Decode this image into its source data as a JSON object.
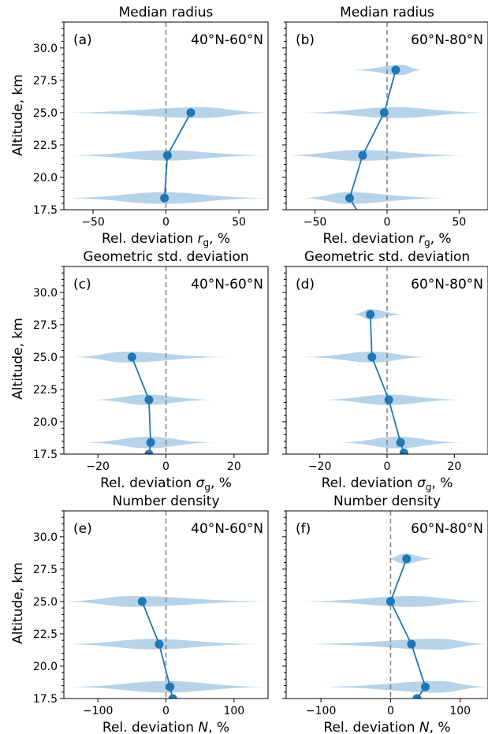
{
  "colors": {
    "line": "#1f77b4",
    "violin": "#b7d3ea",
    "zero_line": "#808080",
    "axes": "#000000"
  },
  "y_axis_label": "Altitude, km",
  "chart_data": [
    {
      "id": "a",
      "type": "scatter",
      "title": "Median radius",
      "panel_label": "(a)",
      "latitude_label": "40°N-60°N",
      "xlabel": "Rel. deviation r_g, %",
      "xlabel_parts": {
        "pre": "Rel. deviation ",
        "sym": "r",
        "sub": "g",
        "post": ", %"
      },
      "xlim": [
        -70,
        70
      ],
      "ylim": [
        17.5,
        32
      ],
      "xticks": [
        -50,
        0,
        50
      ],
      "yticks": [
        17.5,
        20.0,
        22.5,
        25.0,
        27.5,
        30.0
      ],
      "show_yticklabels": true,
      "points": [
        {
          "x": -1,
          "y": 18.4
        },
        {
          "x": 1,
          "y": 21.7
        },
        {
          "x": 17,
          "y": 25.0
        }
      ],
      "violins": [
        {
          "y": 18.4,
          "min": -68,
          "max": 68,
          "peak": -2,
          "half_height": 0.45
        },
        {
          "y": 21.7,
          "min": -66,
          "max": 68,
          "peak": 0,
          "half_height": 0.4
        },
        {
          "y": 25.0,
          "min": -70,
          "max": 70,
          "peak": 25,
          "half_height": 0.42
        }
      ]
    },
    {
      "id": "b",
      "type": "scatter",
      "title": "Median radius",
      "panel_label": "(b)",
      "latitude_label": "60°N-80°N",
      "xlabel": "Rel. deviation r_g, %",
      "xlabel_parts": {
        "pre": "Rel. deviation ",
        "sym": "r",
        "sub": "g",
        "post": ", %"
      },
      "xlim": [
        -70,
        70
      ],
      "ylim": [
        17.5,
        32
      ],
      "xticks": [
        -50,
        0,
        50
      ],
      "yticks": [
        17.5,
        20.0,
        22.5,
        25.0,
        27.5,
        30.0
      ],
      "show_yticklabels": false,
      "points": [
        {
          "x": -20,
          "y": 17.3
        },
        {
          "x": -26,
          "y": 18.4
        },
        {
          "x": -17,
          "y": 21.7
        },
        {
          "x": -2,
          "y": 25.0
        },
        {
          "x": 6,
          "y": 28.3
        }
      ],
      "violins": [
        {
          "y": 18.4,
          "min": -58,
          "max": 40,
          "peak": -28,
          "half_height": 0.45
        },
        {
          "y": 21.7,
          "min": -70,
          "max": 55,
          "peak": -20,
          "half_height": 0.42
        },
        {
          "y": 25.0,
          "min": -58,
          "max": 70,
          "peak": 5,
          "half_height": 0.42
        },
        {
          "y": 28.3,
          "min": -24,
          "max": 24,
          "peak": 10,
          "half_height": 0.4
        }
      ]
    },
    {
      "id": "c",
      "type": "scatter",
      "title": "Geometric std. deviation",
      "panel_label": "(c)",
      "latitude_label": "40°N-60°N",
      "xlabel": "Rel. deviation σ_g, %",
      "xlabel_parts": {
        "pre": "Rel. deviation ",
        "sym": "σ",
        "sub": "g",
        "post": ", %"
      },
      "xlim": [
        -30,
        30
      ],
      "ylim": [
        17.5,
        32
      ],
      "xticks": [
        -20,
        0,
        20
      ],
      "yticks": [
        17.5,
        20.0,
        22.5,
        25.0,
        27.5,
        30.0
      ],
      "show_yticklabels": true,
      "points": [
        {
          "x": -5,
          "y": 17.5
        },
        {
          "x": -4.5,
          "y": 18.4
        },
        {
          "x": -5,
          "y": 21.7
        },
        {
          "x": -10,
          "y": 25.0
        }
      ],
      "violins": [
        {
          "y": 18.4,
          "min": -24,
          "max": 14,
          "peak": -5,
          "half_height": 0.45
        },
        {
          "y": 21.7,
          "min": -21,
          "max": 14,
          "peak": -6,
          "half_height": 0.4
        },
        {
          "y": 25.0,
          "min": -27,
          "max": 18,
          "peak": -12,
          "half_height": 0.42
        }
      ]
    },
    {
      "id": "d",
      "type": "scatter",
      "title": "Geometric std. deviation",
      "panel_label": "(d)",
      "latitude_label": "60°N-80°N",
      "xlabel": "Rel. deviation σ_g, %",
      "xlabel_parts": {
        "pre": "Rel. deviation ",
        "sym": "σ",
        "sub": "g",
        "post": ", %"
      },
      "xlim": [
        -30,
        30
      ],
      "ylim": [
        17.5,
        32
      ],
      "xticks": [
        -20,
        0,
        20
      ],
      "yticks": [
        17.5,
        20.0,
        22.5,
        25.0,
        27.5,
        30.0
      ],
      "show_yticklabels": false,
      "points": [
        {
          "x": 5,
          "y": 17.6
        },
        {
          "x": 4,
          "y": 18.4
        },
        {
          "x": 0.5,
          "y": 21.7
        },
        {
          "x": -4.5,
          "y": 25.0
        },
        {
          "x": -5,
          "y": 28.3
        }
      ],
      "violins": [
        {
          "y": 18.4,
          "min": -14,
          "max": 22,
          "peak": 3,
          "half_height": 0.45
        },
        {
          "y": 21.7,
          "min": -19,
          "max": 22,
          "peak": 0,
          "half_height": 0.4
        },
        {
          "y": 25.0,
          "min": -25,
          "max": 12,
          "peak": -4,
          "half_height": 0.42
        },
        {
          "y": 28.3,
          "min": -10,
          "max": 5,
          "peak": -5,
          "half_height": 0.4
        }
      ]
    },
    {
      "id": "e",
      "type": "scatter",
      "title": "Number density",
      "panel_label": "(e)",
      "latitude_label": "40°N-60°N",
      "xlabel": "Rel. deviation N, %",
      "xlabel_parts": {
        "pre": "Rel. deviation ",
        "sym": "N",
        "sub": "",
        "post": ", %"
      },
      "xlim": [
        -150,
        150
      ],
      "ylim": [
        17.5,
        32
      ],
      "xticks": [
        -100,
        0,
        100
      ],
      "yticks": [
        17.5,
        20.0,
        22.5,
        25.0,
        27.5,
        30.0
      ],
      "show_yticklabels": true,
      "points": [
        {
          "x": 10,
          "y": 17.5
        },
        {
          "x": 6,
          "y": 18.4
        },
        {
          "x": -10,
          "y": 21.7
        },
        {
          "x": -35,
          "y": 25.0
        }
      ],
      "violins": [
        {
          "y": 18.4,
          "min": -140,
          "max": 148,
          "peak": 0,
          "half_height": 0.45
        },
        {
          "y": 21.7,
          "min": -148,
          "max": 138,
          "peak": -20,
          "half_height": 0.4
        },
        {
          "y": 25.0,
          "min": -150,
          "max": 150,
          "peak": -50,
          "half_height": 0.42
        }
      ]
    },
    {
      "id": "f",
      "type": "scatter",
      "title": "Number density",
      "panel_label": "(f)",
      "latitude_label": "60°N-80°N",
      "xlabel": "Rel. deviation N, %",
      "xlabel_parts": {
        "pre": "Rel. deviation ",
        "sym": "N",
        "sub": "",
        "post": ", %"
      },
      "xlim": [
        -150,
        140
      ],
      "ylim": [
        17.5,
        32
      ],
      "xticks": [
        -100,
        0,
        100
      ],
      "yticks": [
        17.5,
        20.0,
        22.5,
        25.0,
        27.5,
        30.0
      ],
      "show_yticklabels": false,
      "points": [
        {
          "x": 38,
          "y": 17.5
        },
        {
          "x": 50,
          "y": 18.4
        },
        {
          "x": 30,
          "y": 21.7
        },
        {
          "x": 0,
          "y": 25.0
        },
        {
          "x": 23,
          "y": 28.3
        }
      ],
      "violins": [
        {
          "y": 18.4,
          "min": -100,
          "max": 140,
          "peak": 70,
          "half_height": 0.45
        },
        {
          "y": 21.7,
          "min": -120,
          "max": 140,
          "peak": 70,
          "half_height": 0.42
        },
        {
          "y": 25.0,
          "min": -125,
          "max": 140,
          "peak": 30,
          "half_height": 0.42
        },
        {
          "y": 28.3,
          "min": -6,
          "max": 62,
          "peak": 20,
          "half_height": 0.4
        }
      ]
    }
  ]
}
